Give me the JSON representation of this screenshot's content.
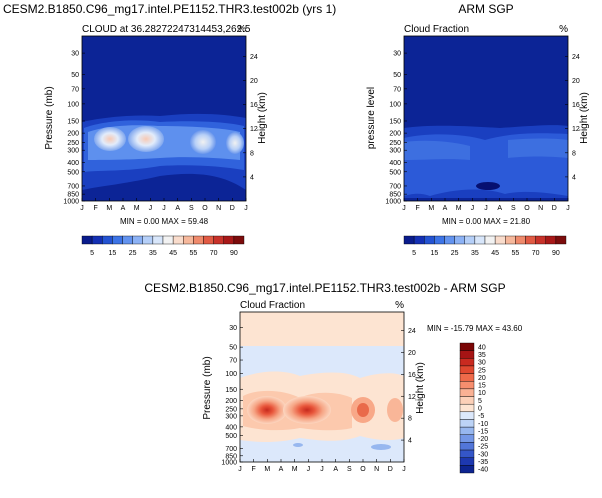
{
  "chart_data": [
    {
      "type": "heatmap",
      "title": "CESM2.B1850.C96_mg17.intel.PE1152.THR3.test002b (yrs 1)",
      "left_label": "CLOUD at 36.28272247314453,262.5",
      "right_label": "%",
      "ylabel": "Pressure (mb)",
      "y2label": "Height (km)",
      "stats": "MIN =  0.00 MAX =  59.48",
      "ylim": [
        1000,
        20
      ],
      "months": [
        "J",
        "F",
        "M",
        "A",
        "M",
        "J",
        "J",
        "A",
        "S",
        "O",
        "N",
        "D",
        "J"
      ],
      "pressure_ticks": [
        "30",
        "50",
        "70",
        "100",
        "150",
        "200",
        "250",
        "300",
        "400",
        "500",
        "700",
        "850",
        "1000"
      ],
      "height_ticks": [
        "24",
        "20",
        "16",
        "12",
        "8",
        "4"
      ],
      "scale": "cloud"
    },
    {
      "type": "heatmap",
      "title": "ARM SGP",
      "left_label": "Cloud Fraction",
      "right_label": "%",
      "ylabel": "pressure level",
      "y2label": "Height (km)",
      "stats": "MIN =  0.00 MAX =  21.80",
      "ylim": [
        1000,
        20
      ],
      "months": [
        "J",
        "F",
        "M",
        "A",
        "M",
        "J",
        "J",
        "A",
        "S",
        "O",
        "N",
        "D",
        "J"
      ],
      "pressure_ticks": [
        "30",
        "50",
        "70",
        "100",
        "150",
        "200",
        "250",
        "300",
        "400",
        "500",
        "700",
        "850",
        "1000"
      ],
      "height_ticks": [
        "24",
        "20",
        "16",
        "12",
        "8",
        "4"
      ],
      "scale": "cloud"
    },
    {
      "type": "heatmap",
      "title": "CESM2.B1850.C96_mg17.intel.PE1152.THR3.test002b - ARM SGP",
      "left_label": "Cloud Fraction",
      "right_label": "%",
      "ylabel": "Pressure (mb)",
      "y2label": "Height (km)",
      "stats": "MIN = -15.79 MAX =  43.60",
      "ylim": [
        1000,
        20
      ],
      "months": [
        "J",
        "F",
        "M",
        "A",
        "M",
        "J",
        "J",
        "A",
        "S",
        "O",
        "N",
        "D",
        "J"
      ],
      "pressure_ticks": [
        "30",
        "50",
        "70",
        "100",
        "150",
        "200",
        "250",
        "300",
        "400",
        "500",
        "700",
        "850",
        "1000"
      ],
      "height_ticks": [
        "24",
        "20",
        "16",
        "12",
        "8",
        "4"
      ],
      "scale": "diff"
    }
  ],
  "colorbars": {
    "cloud": {
      "labels": [
        "5",
        "15",
        "25",
        "35",
        "45",
        "55",
        "70",
        "90"
      ],
      "colors": [
        "#0a1c8c",
        "#1430b4",
        "#2453d2",
        "#3d74e6",
        "#6393ef",
        "#8cb2f5",
        "#b5cff8",
        "#d8e6fa",
        "#f2f2f2",
        "#f9dccc",
        "#f6b89c",
        "#ef8a6c",
        "#e15a44",
        "#c8322a",
        "#a81818",
        "#7c0c0c"
      ]
    },
    "diff": {
      "labels": [
        "40",
        "35",
        "30",
        "25",
        "20",
        "15",
        "10",
        "5",
        "0",
        "-5",
        "-10",
        "-15",
        "-20",
        "-25",
        "-30",
        "-35",
        "-40"
      ],
      "colors": [
        "#7a0606",
        "#a51414",
        "#c92a20",
        "#e04830",
        "#ef6a4a",
        "#f78e6e",
        "#fab194",
        "#fcd0b8",
        "#fde4d2",
        "#dce8fb",
        "#bcd3f6",
        "#97b7ef",
        "#7497e6",
        "#5276d9",
        "#3456c8",
        "#1d38b0",
        "#0d2490"
      ]
    }
  }
}
